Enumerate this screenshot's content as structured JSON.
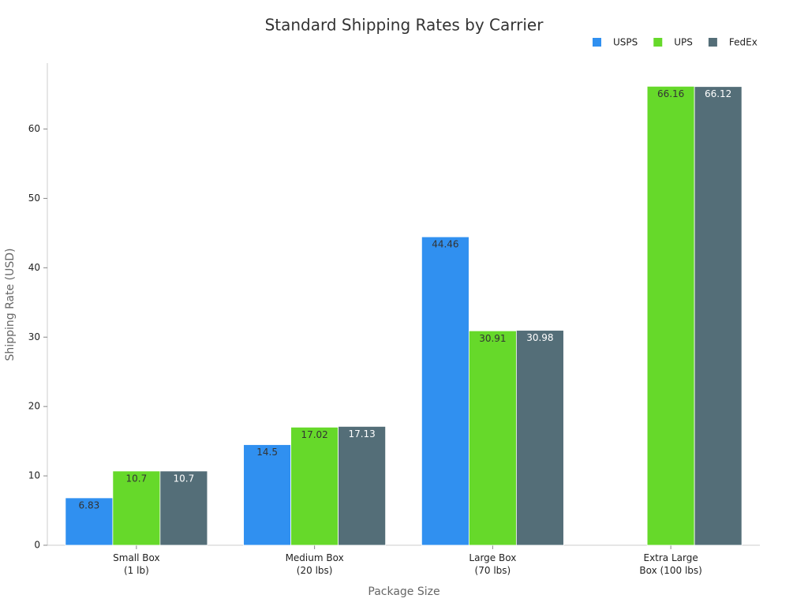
{
  "chart_data": {
    "type": "bar",
    "title": "Standard Shipping Rates by Carrier",
    "x_label": "Package Size",
    "y_label": "Shipping Rate (USD)",
    "categories": [
      "Small Box\n(1 lb)",
      "Medium Box\n(20 lbs)",
      "Large Box\n(70 lbs)",
      "Extra Large\nBox (100 lbs)"
    ],
    "series": [
      {
        "name": "USPS",
        "color": "#3090f0",
        "label_color": "#333333",
        "values": [
          6.83,
          14.5,
          44.46,
          null
        ]
      },
      {
        "name": "UPS",
        "color": "#66d92a",
        "label_color": "#333333",
        "values": [
          10.7,
          17.02,
          30.91,
          66.16
        ]
      },
      {
        "name": "FedEx",
        "color": "#546e78",
        "label_color": "#ffffff",
        "values": [
          10.7,
          17.13,
          30.98,
          66.12
        ]
      }
    ],
    "ylim": [
      0,
      69.5
    ],
    "yticks": [
      0,
      10,
      20,
      30,
      40,
      50,
      60
    ],
    "legend": "top-right",
    "grid": false
  }
}
